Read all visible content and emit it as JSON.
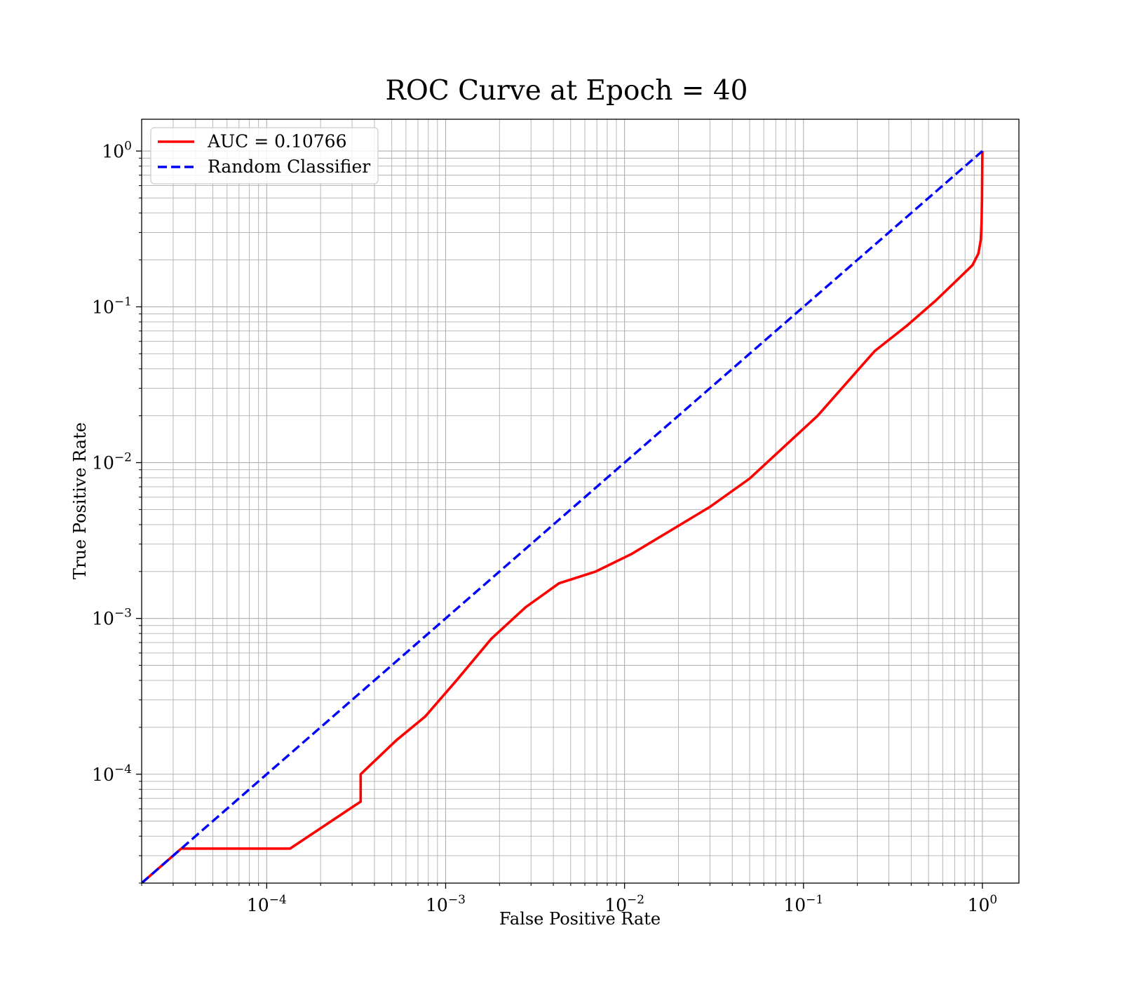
{
  "chart_data": {
    "type": "line",
    "title": "ROC Curve at Epoch = 40",
    "xlabel": "False Positive Rate",
    "ylabel": "True Positive Rate",
    "xscale": "log",
    "yscale": "log",
    "xlim": [
      2e-05,
      1.6
    ],
    "ylim": [
      2e-05,
      1.6
    ],
    "grid": "major and minor",
    "legend_position": "top-left",
    "x_ticks": [
      {
        "base": "10",
        "exp": "−4",
        "value": 0.0001
      },
      {
        "base": "10",
        "exp": "−3",
        "value": 0.001
      },
      {
        "base": "10",
        "exp": "−2",
        "value": 0.01
      },
      {
        "base": "10",
        "exp": "−1",
        "value": 0.1
      },
      {
        "base": "10",
        "exp": "0",
        "value": 1
      }
    ],
    "y_ticks": [
      {
        "base": "10",
        "exp": "−4",
        "value": 0.0001
      },
      {
        "base": "10",
        "exp": "−3",
        "value": 0.001
      },
      {
        "base": "10",
        "exp": "−2",
        "value": 0.01
      },
      {
        "base": "10",
        "exp": "−1",
        "value": 0.1
      },
      {
        "base": "10",
        "exp": "0",
        "value": 1
      }
    ],
    "series": [
      {
        "name": "AUC = 0.10766",
        "color": "#ff0000",
        "style": "solid",
        "points": [
          [
            2e-05,
            2e-05
          ],
          [
            3.33e-05,
            3.33e-05
          ],
          [
            0.000135,
            3.33e-05
          ],
          [
            0.000335,
            6.67e-05
          ],
          [
            0.000335,
            0.0001
          ],
          [
            0.00053,
            0.000165
          ],
          [
            0.00077,
            0.000235
          ],
          [
            0.00115,
            0.0004
          ],
          [
            0.0018,
            0.00074
          ],
          [
            0.0028,
            0.00118
          ],
          [
            0.0043,
            0.00168
          ],
          [
            0.0069,
            0.002
          ],
          [
            0.011,
            0.0026
          ],
          [
            0.03,
            0.0052
          ],
          [
            0.05,
            0.0079
          ],
          [
            0.12,
            0.02
          ],
          [
            0.25,
            0.052
          ],
          [
            0.38,
            0.076
          ],
          [
            0.55,
            0.11
          ],
          [
            0.75,
            0.155
          ],
          [
            0.88,
            0.185
          ],
          [
            0.95,
            0.22
          ],
          [
            0.98,
            0.27
          ],
          [
            0.99,
            0.35
          ],
          [
            0.995,
            0.5
          ],
          [
            1.0,
            1.0
          ]
        ]
      },
      {
        "name": "Random Classifier",
        "color": "#0000ff",
        "style": "dashed",
        "points": [
          [
            2e-05,
            2e-05
          ],
          [
            1.0,
            1.0
          ]
        ]
      }
    ]
  }
}
